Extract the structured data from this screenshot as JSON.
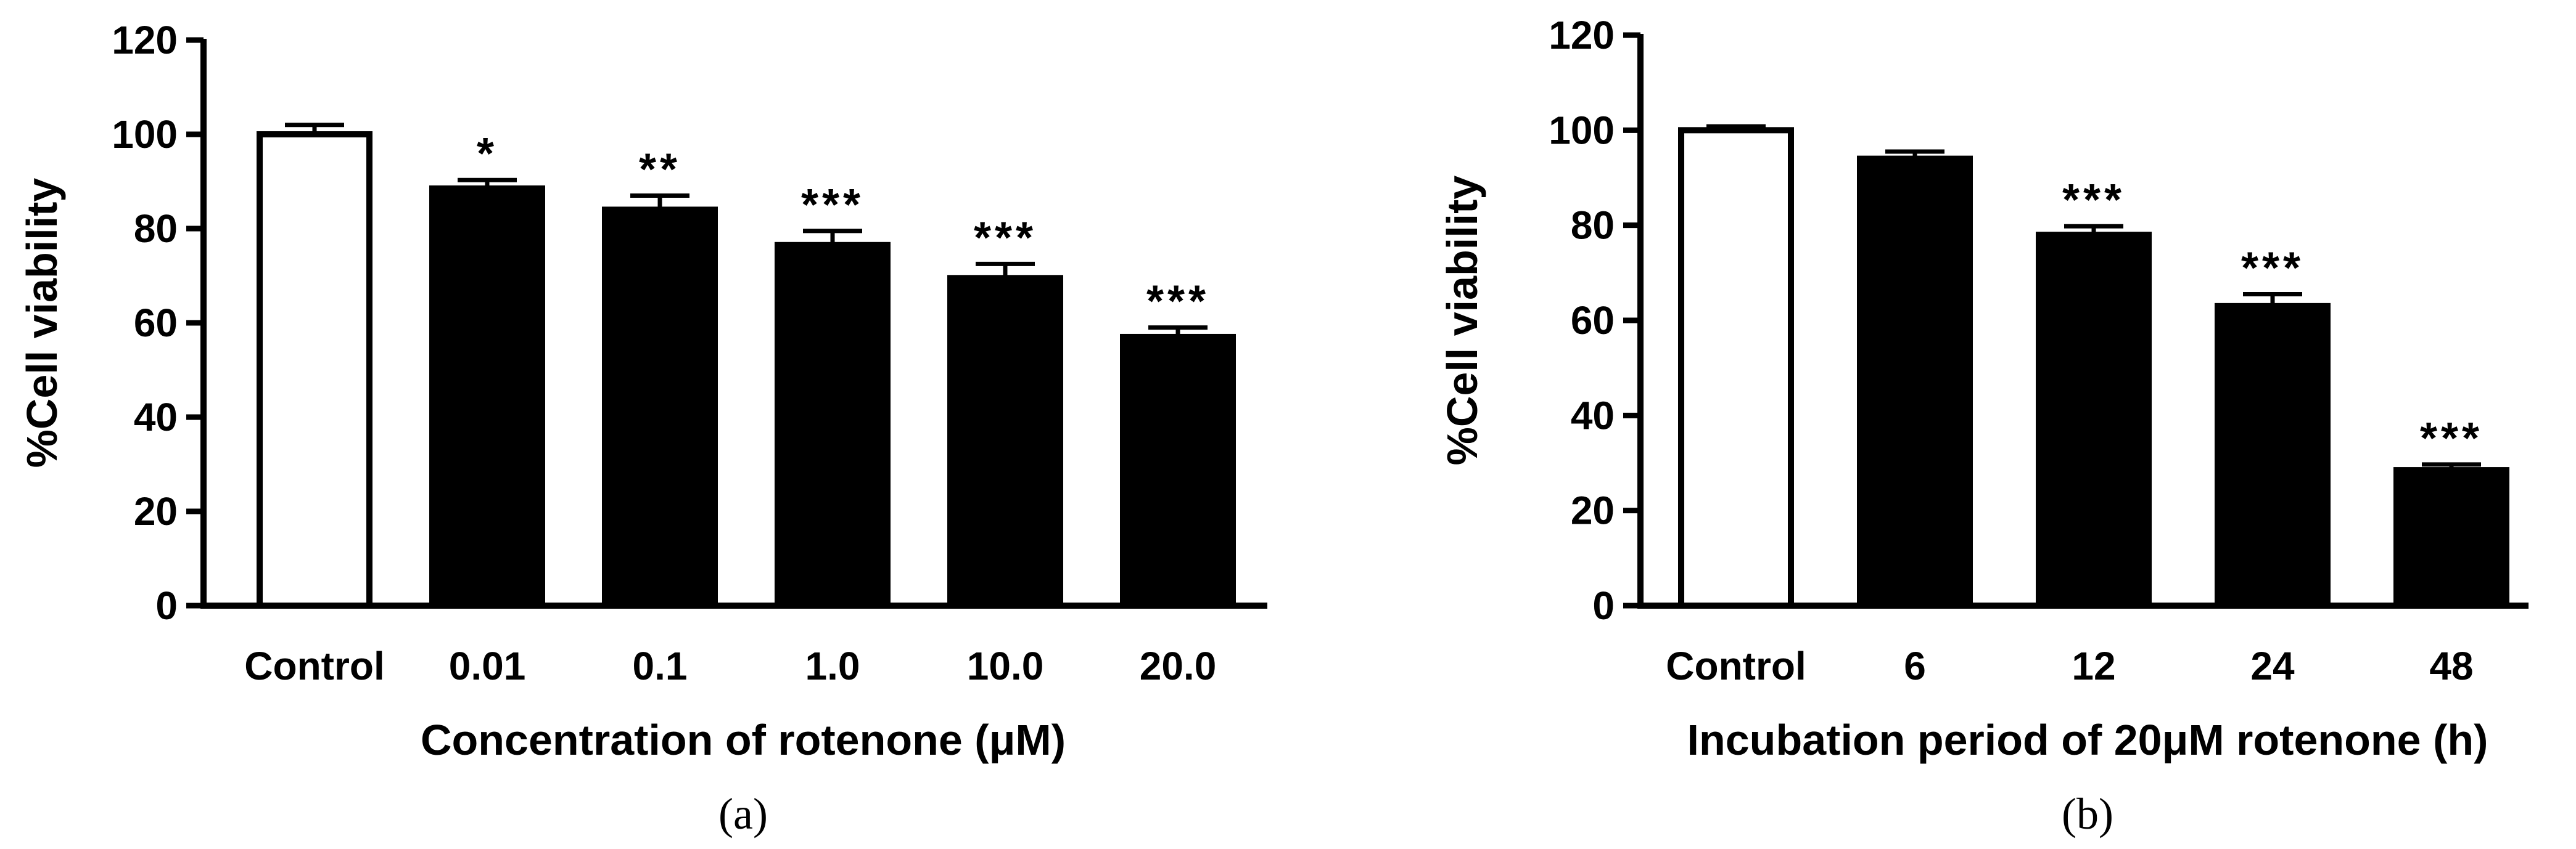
{
  "chart_data": [
    {
      "type": "bar",
      "panel_label": "(a)",
      "categories": [
        "Control",
        "0.01",
        "0.1",
        "1.0",
        "10.0",
        "20.0"
      ],
      "values": [
        100,
        88.5,
        84,
        76.5,
        69.5,
        57
      ],
      "errors": [
        2,
        1.8,
        3,
        3,
        3,
        2
      ],
      "significance": [
        "",
        "*",
        "**",
        "***",
        "***",
        "***"
      ],
      "bar_fills": [
        "#ffffff",
        "#000000",
        "#000000",
        "#000000",
        "#000000",
        "#000000"
      ],
      "xlabel": "Concentration of rotenone (μM)",
      "ylabel": "%Cell viability",
      "ylim": [
        0,
        120
      ],
      "yticks": [
        "0",
        "20",
        "40",
        "60",
        "80",
        "100",
        "120"
      ],
      "grid": false
    },
    {
      "type": "bar",
      "panel_label": "(b)",
      "categories": [
        "Control",
        "6",
        "12",
        "24",
        "48"
      ],
      "values": [
        100,
        94,
        78,
        63,
        28.5
      ],
      "errors": [
        0.8,
        1.5,
        1.8,
        2.5,
        1.2
      ],
      "significance": [
        "",
        "",
        "***",
        "***",
        "***"
      ],
      "bar_fills": [
        "#ffffff",
        "#000000",
        "#000000",
        "#000000",
        "#000000"
      ],
      "xlabel": "Incubation period of 20μM rotenone (h)",
      "ylabel": "%Cell viability",
      "ylim": [
        0,
        120
      ],
      "yticks": [
        "0",
        "20",
        "40",
        "60",
        "80",
        "100",
        "120"
      ],
      "grid": false
    }
  ]
}
